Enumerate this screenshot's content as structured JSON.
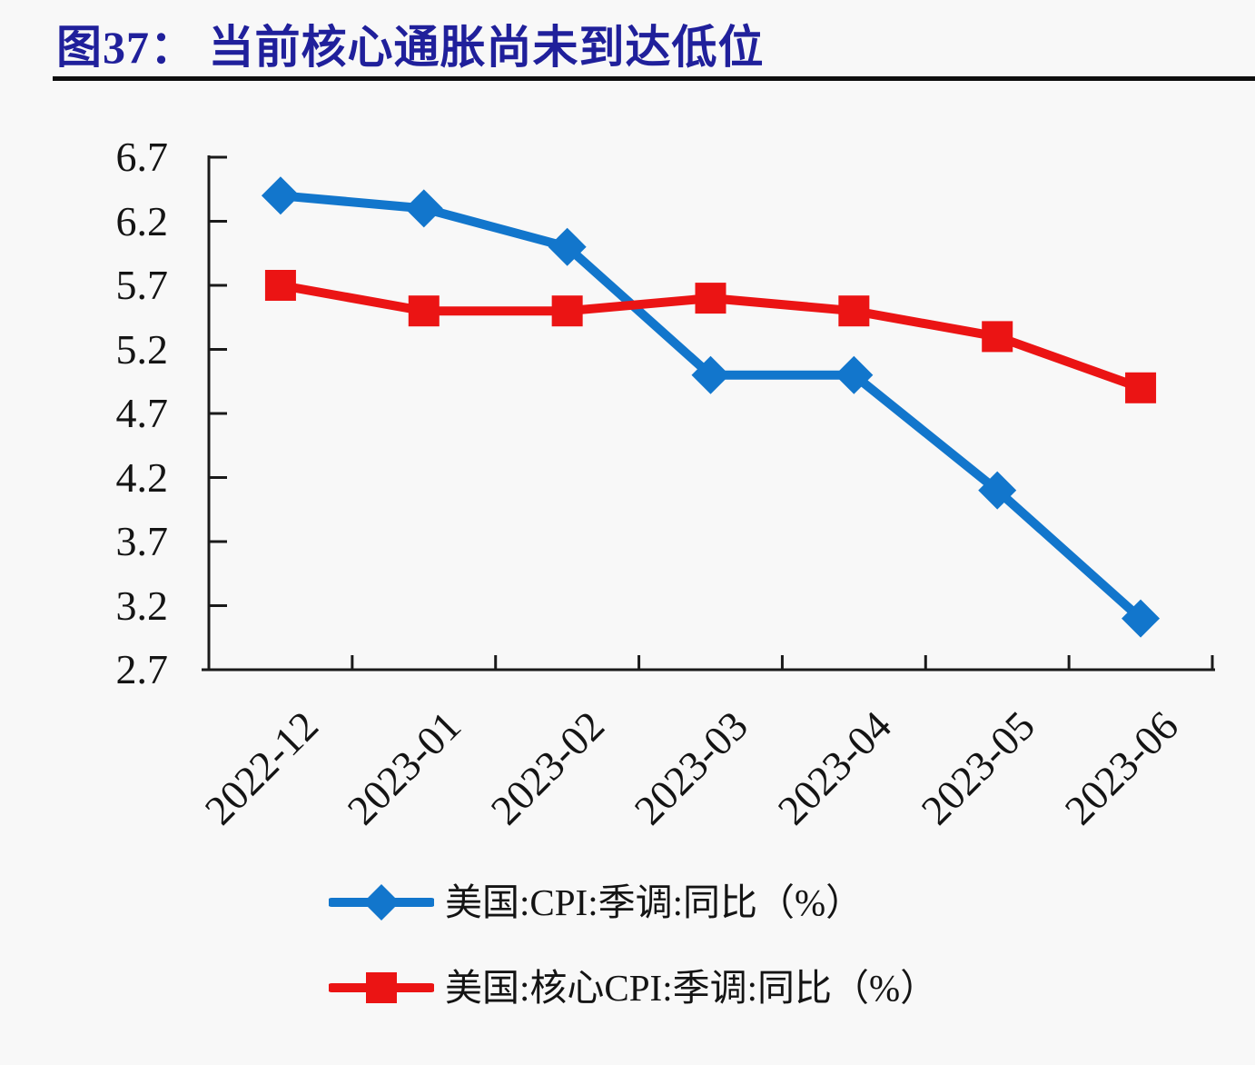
{
  "title": "图37： 当前核心通胀尚未到达低位",
  "colors": {
    "title": "#20209B",
    "axis": "#1A1A1A",
    "background": "#F8F8F8",
    "cpi_line": "#1276CC",
    "core_cpi_line": "#EB1414",
    "label_text": "#141414"
  },
  "chart_data": {
    "type": "line",
    "categories": [
      "2022-12",
      "2023-01",
      "2023-02",
      "2023-03",
      "2023-04",
      "2023-05",
      "2023-06"
    ],
    "series": [
      {
        "name": "美国:CPI:季调:同比（%）",
        "marker": "diamond",
        "color_key": "cpi_line",
        "values": [
          6.4,
          6.3,
          6.0,
          5.0,
          5.0,
          4.1,
          3.1
        ]
      },
      {
        "name": "美国:核心CPI:季调:同比（%）",
        "marker": "square",
        "color_key": "core_cpi_line",
        "values": [
          5.7,
          5.5,
          5.5,
          5.6,
          5.5,
          5.3,
          4.9
        ]
      }
    ],
    "ylim": [
      2.7,
      6.7
    ],
    "ytick_step": 0.5,
    "ytick_labels": [
      "6.7",
      "6.2",
      "5.7",
      "5.2",
      "4.7",
      "4.2",
      "3.7",
      "3.2",
      "2.7"
    ],
    "grid": false,
    "legend_position": "bottom-left",
    "axis_ticks": "inside"
  }
}
